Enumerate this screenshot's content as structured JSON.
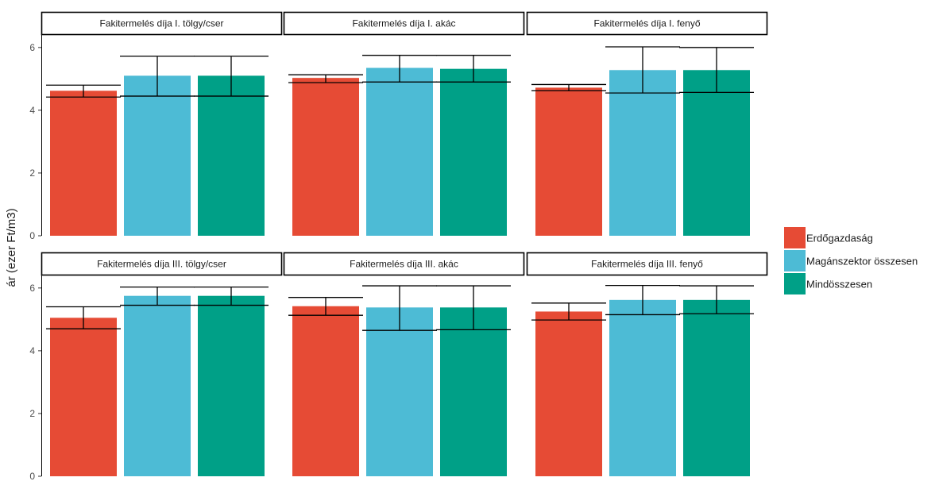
{
  "colors": {
    "Erdőgazdaság": "#E64B35",
    "Magánszektor összesen": "#4DBBD5",
    "Mindösszesen": "#00A087",
    "strip_border": "#000000",
    "errorbar": "#000000",
    "axis": "#000000"
  },
  "chart_data": {
    "type": "bar",
    "ylabel": "ár (ezer Ft/m3)",
    "xlabel": "",
    "ylim": [
      0,
      6.4
    ],
    "yticks": [
      0,
      2,
      4,
      6
    ],
    "grid": false,
    "legend_position": "right",
    "categories": [
      "Erdőgazdaság",
      "Magánszektor összesen",
      "Mindösszesen"
    ],
    "legend": [
      "Erdőgazdaság",
      "Magánszektor összesen",
      "Mindösszesen"
    ],
    "facets": [
      {
        "title": "Fakitermelés díja I. tölgy/cser",
        "values": [
          4.62,
          5.1,
          5.1
        ],
        "err_low": [
          4.42,
          4.45,
          4.45
        ],
        "err_high": [
          4.8,
          5.72,
          5.72
        ]
      },
      {
        "title": "Fakitermelés díja I. akác",
        "values": [
          5.03,
          5.35,
          5.32
        ],
        "err_low": [
          4.88,
          4.9,
          4.9
        ],
        "err_high": [
          5.13,
          5.75,
          5.75
        ]
      },
      {
        "title": "Fakitermelés díja I. fenyő",
        "values": [
          4.72,
          5.28,
          5.28
        ],
        "err_low": [
          4.62,
          4.55,
          4.57
        ],
        "err_high": [
          4.82,
          6.02,
          6.0
        ]
      },
      {
        "title": "Fakitermelés díja III. tölgy/cser",
        "values": [
          5.05,
          5.75,
          5.75
        ],
        "err_low": [
          4.7,
          5.45,
          5.45
        ],
        "err_high": [
          5.4,
          6.03,
          6.03
        ]
      },
      {
        "title": "Fakitermelés díja III. akác",
        "values": [
          5.42,
          5.38,
          5.38
        ],
        "err_low": [
          5.13,
          4.65,
          4.67
        ],
        "err_high": [
          5.7,
          6.07,
          6.07
        ]
      },
      {
        "title": "Fakitermelés díja III. fenyő",
        "values": [
          5.25,
          5.62,
          5.62
        ],
        "err_low": [
          4.98,
          5.15,
          5.18
        ],
        "err_high": [
          5.52,
          6.08,
          6.07
        ]
      }
    ]
  }
}
